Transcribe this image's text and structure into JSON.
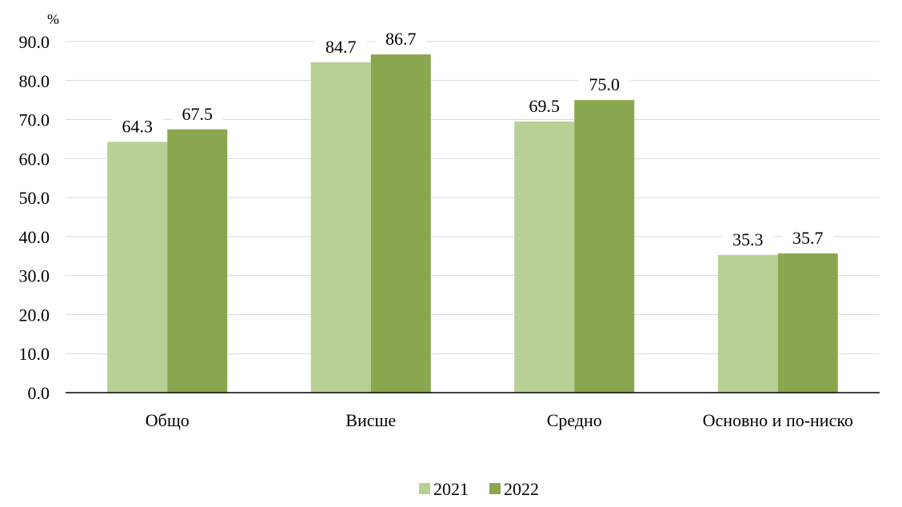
{
  "chart_data": {
    "type": "bar",
    "ylabel": "%",
    "categories": [
      "Общо",
      "Висше",
      "Средно",
      "Основно и по-ниско"
    ],
    "series": [
      {
        "name": "2021",
        "color": "#b8cf95",
        "values": [
          64.3,
          84.7,
          69.5,
          35.3
        ]
      },
      {
        "name": "2022",
        "color": "#8aa64e",
        "values": [
          67.5,
          86.7,
          75.0,
          35.7
        ]
      }
    ],
    "ylim": [
      0,
      90
    ],
    "yticks": [
      "0.0",
      "10.0",
      "20.0",
      "30.0",
      "40.0",
      "50.0",
      "60.0",
      "70.0",
      "80.0",
      "90.0"
    ],
    "grid": true,
    "legend_position": "bottom-center"
  }
}
